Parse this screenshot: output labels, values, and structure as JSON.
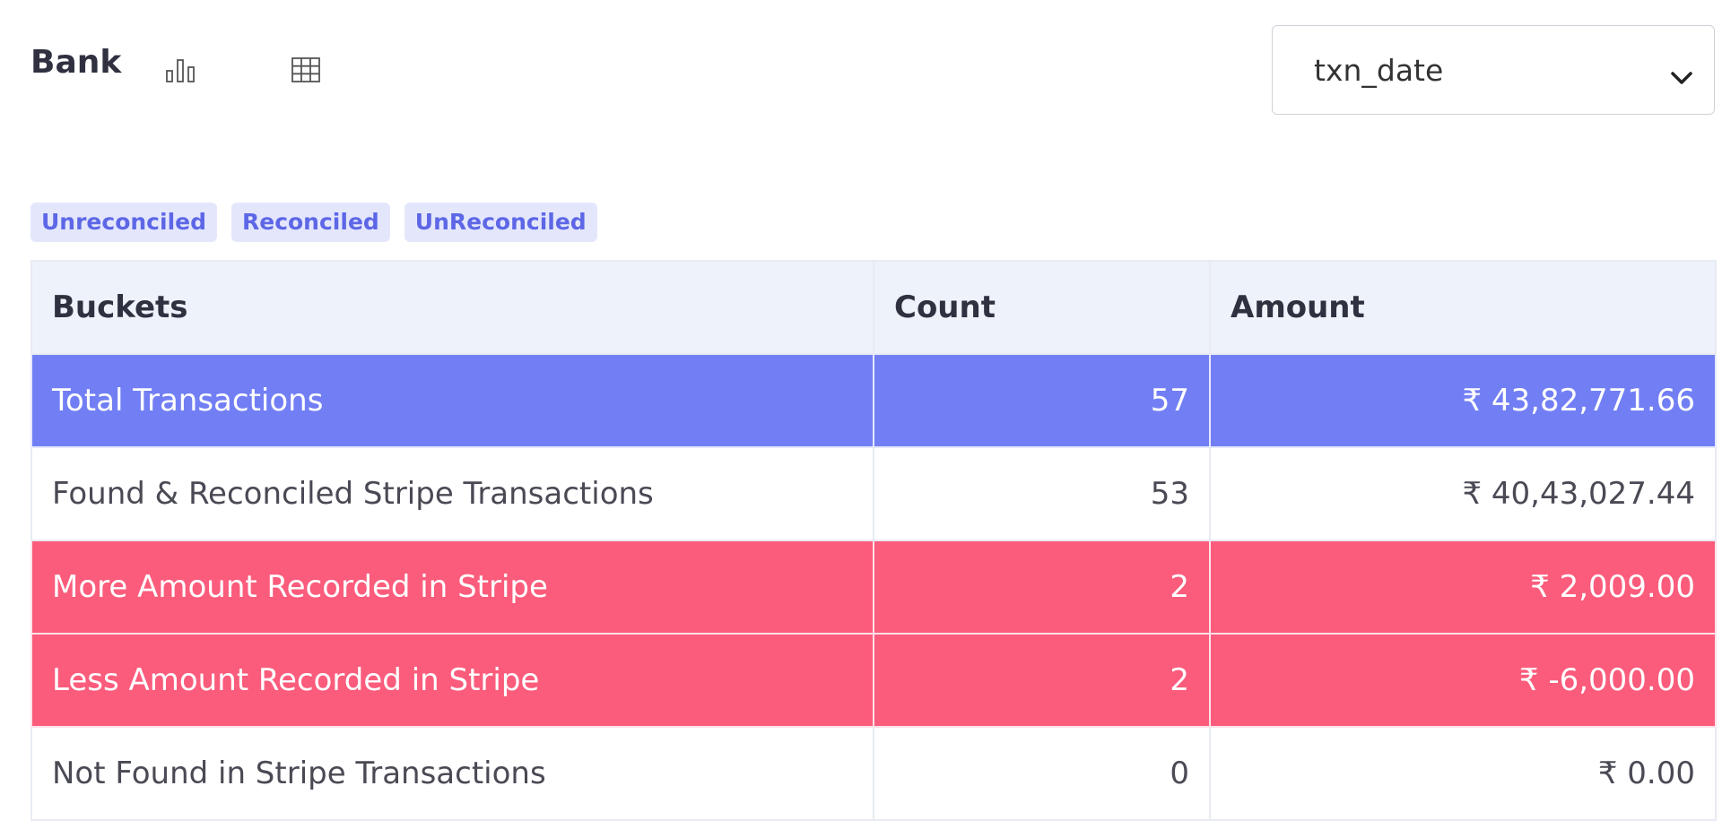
{
  "header": {
    "title": "Bank",
    "chart_icon": "bar-chart-icon",
    "grid_icon": "table-grid-icon"
  },
  "date_select": {
    "selected": "txn_date",
    "icon": "chevron-down-icon"
  },
  "filters": [
    {
      "label": "Unreconciled"
    },
    {
      "label": "Reconciled"
    },
    {
      "label": "UnReconciled"
    }
  ],
  "table": {
    "columns": [
      "Buckets",
      "Count",
      "Amount"
    ],
    "rows": [
      {
        "bucket": "Total Transactions",
        "count": "57",
        "amount": "₹ 43,82,771.66",
        "style": "total"
      },
      {
        "bucket": "Found & Reconciled Stripe Transactions",
        "count": "53",
        "amount": "₹ 40,43,027.44",
        "style": "plain"
      },
      {
        "bucket": "More Amount Recorded in Stripe",
        "count": "2",
        "amount": "₹ 2,009.00",
        "style": "alert"
      },
      {
        "bucket": "Less Amount Recorded in Stripe",
        "count": "2",
        "amount": "₹ -6,000.00",
        "style": "alert"
      },
      {
        "bucket": "Not Found in Stripe Transactions",
        "count": "0",
        "amount": "₹ 0.00",
        "style": "plain"
      }
    ]
  },
  "colors": {
    "total_row": "#727ff4",
    "alert_row": "#fb5c7c",
    "chip_bg": "#e4e7fc",
    "chip_text": "#5d67e6"
  }
}
